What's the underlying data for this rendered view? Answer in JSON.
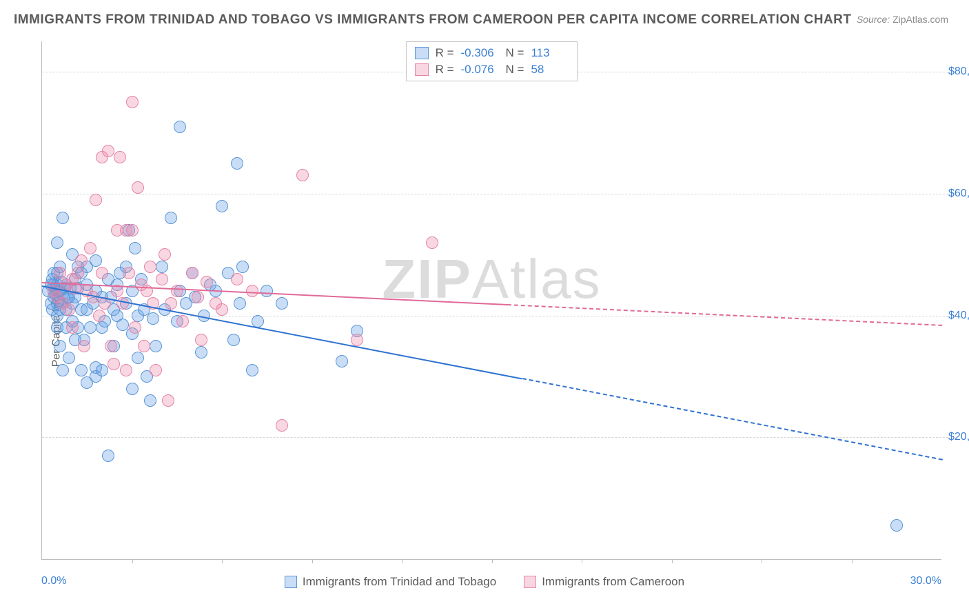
{
  "title": "IMMIGRANTS FROM TRINIDAD AND TOBAGO VS IMMIGRANTS FROM CAMEROON PER CAPITA INCOME CORRELATION CHART",
  "source_label": "Source:",
  "source_value": "ZipAtlas.com",
  "ylabel": "Per Capita Income",
  "watermark_bold": "ZIP",
  "watermark_rest": "Atlas",
  "axes": {
    "xmin": 0.0,
    "xmax": 30.0,
    "ymin": 0,
    "ymax": 85000,
    "x_label_min": "0.0%",
    "x_label_max": "30.0%",
    "y_ticks": [
      {
        "v": 20000,
        "label": "$20,000"
      },
      {
        "v": 40000,
        "label": "$40,000"
      },
      {
        "v": 60000,
        "label": "$60,000"
      },
      {
        "v": 80000,
        "label": "$80,000"
      }
    ],
    "x_tick_marks_pct": [
      10,
      20,
      30,
      40,
      50,
      60,
      70,
      80,
      90
    ],
    "grid_color": "#d5d5d5",
    "axis_color": "#bdbdbd"
  },
  "series": [
    {
      "id": "tt",
      "name": "Immigrants from Trinidad and Tobago",
      "fill": "rgba(100,160,230,0.35)",
      "stroke": "#5a95d6",
      "line_color": "#2f72d0",
      "R": "-0.306",
      "N": "113",
      "reg_y_at_xmin": 45000,
      "reg_y_at_xmax": 16500,
      "data_extent_x": 16.0,
      "marker_radius": 9
    },
    {
      "id": "cm",
      "name": "Immigrants from Cameroon",
      "fill": "rgba(235,130,165,0.32)",
      "stroke": "#e484a8",
      "line_color": "#e06a98",
      "R": "-0.076",
      "N": "58",
      "reg_y_at_xmin": 45500,
      "reg_y_at_xmax": 38500,
      "data_extent_x": 15.5,
      "marker_radius": 9
    }
  ],
  "points": {
    "tt": [
      [
        0.2,
        44000
      ],
      [
        0.3,
        45000
      ],
      [
        0.3,
        42000
      ],
      [
        0.35,
        46000
      ],
      [
        0.35,
        41000
      ],
      [
        0.4,
        44000
      ],
      [
        0.4,
        45000
      ],
      [
        0.4,
        43000
      ],
      [
        0.4,
        47000
      ],
      [
        0.45,
        44500
      ],
      [
        0.45,
        43500
      ],
      [
        0.5,
        52000
      ],
      [
        0.5,
        38000
      ],
      [
        0.5,
        40000
      ],
      [
        0.5,
        44000
      ],
      [
        0.5,
        45000
      ],
      [
        0.5,
        42000
      ],
      [
        0.5,
        47000
      ],
      [
        0.55,
        42500
      ],
      [
        0.6,
        35000
      ],
      [
        0.6,
        44000
      ],
      [
        0.6,
        48000
      ],
      [
        0.6,
        41000
      ],
      [
        0.65,
        45500
      ],
      [
        0.7,
        31000
      ],
      [
        0.7,
        42000
      ],
      [
        0.7,
        56000
      ],
      [
        0.7,
        43500
      ],
      [
        0.75,
        44500
      ],
      [
        0.8,
        38000
      ],
      [
        0.8,
        45000
      ],
      [
        0.8,
        41000
      ],
      [
        0.85,
        43000
      ],
      [
        0.9,
        33000
      ],
      [
        0.9,
        43000
      ],
      [
        0.95,
        44500
      ],
      [
        1.0,
        39000
      ],
      [
        1.0,
        50000
      ],
      [
        1.0,
        42000
      ],
      [
        1.1,
        46000
      ],
      [
        1.1,
        36000
      ],
      [
        1.1,
        43000
      ],
      [
        1.2,
        48000
      ],
      [
        1.2,
        38000
      ],
      [
        1.2,
        44500
      ],
      [
        1.3,
        31000
      ],
      [
        1.3,
        41000
      ],
      [
        1.3,
        47000
      ],
      [
        1.4,
        36000
      ],
      [
        1.5,
        48000
      ],
      [
        1.5,
        29000
      ],
      [
        1.5,
        41000
      ],
      [
        1.5,
        45000
      ],
      [
        1.6,
        38000
      ],
      [
        1.7,
        42000
      ],
      [
        1.8,
        49000
      ],
      [
        1.8,
        31500
      ],
      [
        1.8,
        30000
      ],
      [
        1.8,
        44000
      ],
      [
        2.0,
        31000
      ],
      [
        2.0,
        38000
      ],
      [
        2.0,
        43000
      ],
      [
        2.1,
        39000
      ],
      [
        2.2,
        46000
      ],
      [
        2.3,
        43000
      ],
      [
        2.4,
        41000
      ],
      [
        2.4,
        35000
      ],
      [
        2.5,
        40000
      ],
      [
        2.5,
        45000
      ],
      [
        2.6,
        47000
      ],
      [
        2.7,
        38500
      ],
      [
        2.8,
        48000
      ],
      [
        2.8,
        42000
      ],
      [
        2.9,
        54000
      ],
      [
        3.0,
        28000
      ],
      [
        3.0,
        37000
      ],
      [
        3.0,
        44000
      ],
      [
        3.1,
        51000
      ],
      [
        3.2,
        33000
      ],
      [
        3.2,
        40000
      ],
      [
        3.3,
        46000
      ],
      [
        3.4,
        41000
      ],
      [
        3.5,
        30000
      ],
      [
        3.6,
        26000
      ],
      [
        3.7,
        39500
      ],
      [
        3.8,
        35000
      ],
      [
        4.0,
        48000
      ],
      [
        4.1,
        41000
      ],
      [
        4.3,
        56000
      ],
      [
        4.5,
        39000
      ],
      [
        4.6,
        71000
      ],
      [
        4.6,
        44000
      ],
      [
        4.8,
        42000
      ],
      [
        5.0,
        47000
      ],
      [
        5.1,
        43000
      ],
      [
        5.3,
        34000
      ],
      [
        5.4,
        40000
      ],
      [
        5.6,
        45000
      ],
      [
        5.8,
        44000
      ],
      [
        6.0,
        58000
      ],
      [
        6.2,
        47000
      ],
      [
        6.4,
        36000
      ],
      [
        6.5,
        65000
      ],
      [
        6.6,
        42000
      ],
      [
        6.7,
        48000
      ],
      [
        7.0,
        31000
      ],
      [
        7.2,
        39000
      ],
      [
        7.5,
        44000
      ],
      [
        8.0,
        42000
      ],
      [
        10.0,
        32500
      ],
      [
        10.5,
        37500
      ],
      [
        28.5,
        5500
      ],
      [
        2.2,
        17000
      ]
    ],
    "cm": [
      [
        0.4,
        44000
      ],
      [
        0.5,
        43000
      ],
      [
        0.6,
        47000
      ],
      [
        0.7,
        42000
      ],
      [
        0.8,
        45000
      ],
      [
        0.9,
        41000
      ],
      [
        1.0,
        46000
      ],
      [
        1.0,
        38000
      ],
      [
        1.1,
        44500
      ],
      [
        1.2,
        47000
      ],
      [
        1.3,
        49000
      ],
      [
        1.4,
        35000
      ],
      [
        1.5,
        44000
      ],
      [
        1.6,
        51000
      ],
      [
        1.7,
        43000
      ],
      [
        1.8,
        59000
      ],
      [
        1.9,
        40000
      ],
      [
        2.0,
        47000
      ],
      [
        2.0,
        66000
      ],
      [
        2.1,
        42000
      ],
      [
        2.2,
        67000
      ],
      [
        2.3,
        35000
      ],
      [
        2.4,
        32000
      ],
      [
        2.5,
        54000
      ],
      [
        2.5,
        44000
      ],
      [
        2.6,
        66000
      ],
      [
        2.7,
        42000
      ],
      [
        2.8,
        54000
      ],
      [
        2.8,
        31000
      ],
      [
        2.9,
        47000
      ],
      [
        3.0,
        54000
      ],
      [
        3.0,
        75000
      ],
      [
        3.1,
        38000
      ],
      [
        3.2,
        61000
      ],
      [
        3.3,
        45000
      ],
      [
        3.4,
        35000
      ],
      [
        3.5,
        44000
      ],
      [
        3.6,
        48000
      ],
      [
        3.7,
        42000
      ],
      [
        3.8,
        31000
      ],
      [
        4.0,
        46000
      ],
      [
        4.1,
        50000
      ],
      [
        4.2,
        26000
      ],
      [
        4.3,
        42000
      ],
      [
        4.5,
        44000
      ],
      [
        4.7,
        39000
      ],
      [
        5.0,
        47000
      ],
      [
        5.2,
        43000
      ],
      [
        5.3,
        36000
      ],
      [
        5.5,
        45500
      ],
      [
        5.8,
        42000
      ],
      [
        6.0,
        41000
      ],
      [
        6.5,
        46000
      ],
      [
        7.0,
        44000
      ],
      [
        8.0,
        22000
      ],
      [
        8.7,
        63000
      ],
      [
        10.5,
        36000
      ],
      [
        13.0,
        52000
      ]
    ]
  },
  "legend_labels": {
    "R": "R =",
    "N": "N ="
  }
}
